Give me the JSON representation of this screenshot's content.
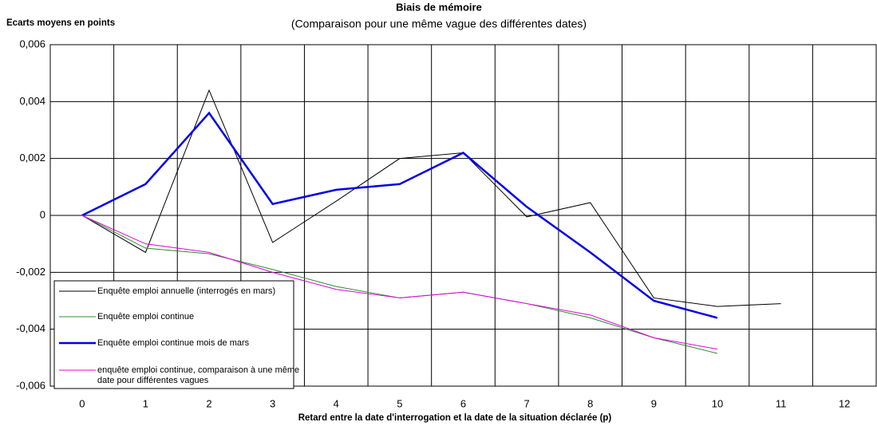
{
  "chart_data": {
    "type": "line",
    "title": "Biais de mémoire",
    "subtitle": "(Comparaison pour une même vague des différentes dates)",
    "y_label": "Ecarts moyens en points",
    "x_label": "Retard entre la date d'interrogation et la date de la situation déclarée (p)",
    "categories": [
      "0",
      "1",
      "2",
      "3",
      "4",
      "5",
      "6",
      "7",
      "8",
      "9",
      "10",
      "11",
      "12"
    ],
    "ylim": [
      -0.006,
      0.006
    ],
    "yticks": [
      {
        "value": -0.006,
        "label": "-0,006"
      },
      {
        "value": -0.004,
        "label": "-0,004"
      },
      {
        "value": -0.002,
        "label": "-0,002"
      },
      0,
      {
        "value": 0.002,
        "label": "0,002"
      },
      {
        "value": 0.004,
        "label": "0,004"
      },
      {
        "value": 0.006,
        "label": "0,006"
      }
    ],
    "grid": true,
    "legend": "bottom-left",
    "series": [
      {
        "name": "Enquête emploi annuelle (interrogés en mars)",
        "color": "#000000",
        "width": 1,
        "values": [
          0,
          -0.0013,
          0.0044,
          -0.00095,
          0.0005,
          0.002,
          0.0022,
          -5e-05,
          0.00045,
          -0.0029,
          -0.0032,
          -0.0031,
          null
        ]
      },
      {
        "name": "Enquête emploi continue",
        "color": "#2e8b2e",
        "width": 1,
        "values": [
          0,
          -0.00115,
          -0.00135,
          -0.0019,
          -0.0025,
          -0.0029,
          -0.0027,
          -0.0031,
          -0.0036,
          -0.0043,
          -0.00485,
          null,
          null
        ]
      },
      {
        "name": "Enquête emploi continue mois de mars",
        "color": "#0000e6",
        "width": 2.5,
        "values": [
          0,
          0.0011,
          0.0036,
          0.0004,
          0.0009,
          0.0011,
          0.0022,
          0.0003,
          -0.0013,
          -0.003,
          -0.0036,
          null,
          null
        ]
      },
      {
        "name": "enquête emploi continue, comparaison à une même date pour différentes vagues",
        "color": "#e000e0",
        "width": 1,
        "values": [
          0,
          -0.001,
          -0.0013,
          -0.002,
          -0.0026,
          -0.0029,
          -0.0027,
          -0.0031,
          -0.0035,
          -0.0043,
          -0.0047,
          null,
          null
        ]
      }
    ]
  }
}
